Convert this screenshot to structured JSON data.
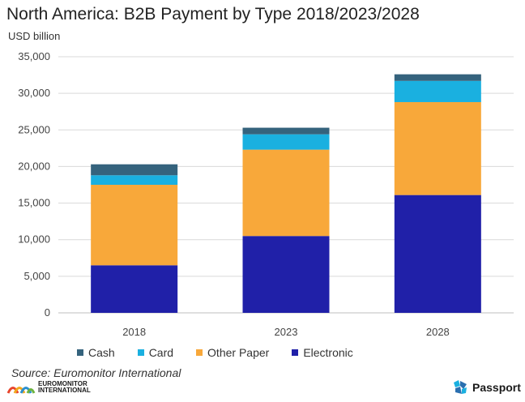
{
  "title": "North America: B2B Payment by Type 2018/2023/2028",
  "unit_label": "USD billion",
  "source": "Source: Euromonitor International",
  "logos": {
    "left_text_line1": "EUROMONITOR",
    "left_text_line2": "INTERNATIONAL",
    "right_text": "Passport"
  },
  "chart_data": {
    "type": "bar",
    "stacked": true,
    "categories": [
      "2018",
      "2023",
      "2028"
    ],
    "series": [
      {
        "name": "Electronic",
        "color": "#2020a8",
        "values": [
          6500,
          10500,
          16100
        ]
      },
      {
        "name": "Other Paper",
        "color": "#f8a83a",
        "values": [
          11000,
          11800,
          12700
        ]
      },
      {
        "name": "Card",
        "color": "#1ab0e0",
        "values": [
          1300,
          2100,
          2900
        ]
      },
      {
        "name": "Cash",
        "color": "#35637d",
        "values": [
          1500,
          900,
          900
        ]
      }
    ],
    "legend_order": [
      "Cash",
      "Card",
      "Other Paper",
      "Electronic"
    ],
    "ylim": [
      0,
      35000
    ],
    "yticks": [
      "0",
      "5,000",
      "10,000",
      "15,000",
      "20,000",
      "25,000",
      "30,000",
      "35,000"
    ],
    "grid": true,
    "legend_position": "bottom"
  }
}
